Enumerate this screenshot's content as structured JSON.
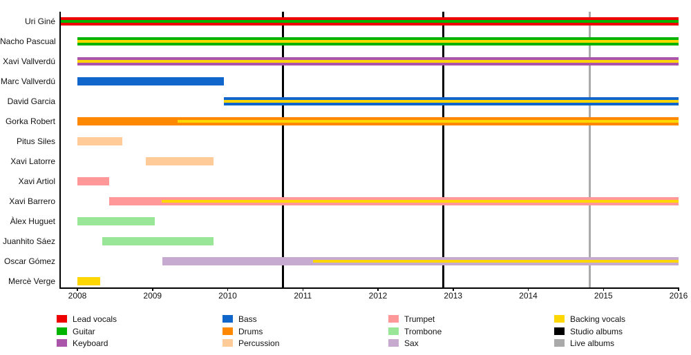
{
  "chart_data": {
    "type": "timeline",
    "title": "",
    "x_axis": {
      "min": 2007.78,
      "max": 2016,
      "ticks": [
        2008,
        2009,
        2010,
        2011,
        2012,
        2013,
        2014,
        2015,
        2016
      ]
    },
    "colors": {
      "lead_vocals": "#ee0000",
      "guitar": "#00b400",
      "keyboard": "#aa55aa",
      "bass": "#1166cc",
      "drums": "#ff8800",
      "percussion": "#ffcc99",
      "trumpet": "#ff9999",
      "trombone": "#99e699",
      "sax": "#c6aacf",
      "backing_vocals": "#ffd700",
      "studio_albums": "#000000",
      "live_albums": "#aaaaaa"
    },
    "members": [
      {
        "name": "Uri Giné",
        "roles": [
          "Lead vocals",
          "Guitar"
        ],
        "bars": [
          {
            "role": "lead_vocals",
            "from": 2007.78,
            "to": 2016
          }
        ],
        "stripe": {
          "role": "guitar",
          "from": 2007.78,
          "to": 2016
        }
      },
      {
        "name": "Nacho Pascual",
        "roles": [
          "Guitar",
          "Backing vocals"
        ],
        "bars": [
          {
            "role": "guitar",
            "from": 2008,
            "to": 2016
          }
        ],
        "stripe": {
          "role": "backing_vocals",
          "from": 2008,
          "to": 2016
        }
      },
      {
        "name": "Xavi Vallverdú",
        "roles": [
          "Keyboard",
          "Backing vocals"
        ],
        "bars": [
          {
            "role": "keyboard",
            "from": 2008,
            "to": 2016
          }
        ],
        "stripe": {
          "role": "backing_vocals",
          "from": 2008,
          "to": 2016
        }
      },
      {
        "name": "Marc Vallverdú",
        "roles": [
          "Bass"
        ],
        "bars": [
          {
            "role": "bass",
            "from": 2008,
            "to": 2009.95
          }
        ],
        "stripe": null
      },
      {
        "name": "David Garcia",
        "roles": [
          "Bass",
          "Backing vocals"
        ],
        "bars": [
          {
            "role": "bass",
            "from": 2009.95,
            "to": 2016
          }
        ],
        "stripe": {
          "role": "backing_vocals",
          "from": 2009.95,
          "to": 2016
        }
      },
      {
        "name": "Gorka Robert",
        "roles": [
          "Drums",
          "Backing vocals"
        ],
        "bars": [
          {
            "role": "drums",
            "from": 2008,
            "to": 2016
          }
        ],
        "stripe": {
          "role": "backing_vocals",
          "from": 2009.33,
          "to": 2016
        }
      },
      {
        "name": "Pitus Siles",
        "roles": [
          "Percussion"
        ],
        "bars": [
          {
            "role": "percussion",
            "from": 2008,
            "to": 2008.6
          }
        ],
        "stripe": null
      },
      {
        "name": "Xavi Latorre",
        "roles": [
          "Percussion"
        ],
        "bars": [
          {
            "role": "percussion",
            "from": 2008.91,
            "to": 2009.81
          }
        ],
        "stripe": null
      },
      {
        "name": "Xavi Artiol",
        "roles": [
          "Trumpet"
        ],
        "bars": [
          {
            "role": "trumpet",
            "from": 2008,
            "to": 2008.42
          }
        ],
        "stripe": null
      },
      {
        "name": "Xavi Barrero",
        "roles": [
          "Trumpet",
          "Backing vocals"
        ],
        "bars": [
          {
            "role": "trumpet",
            "from": 2008.42,
            "to": 2016
          }
        ],
        "stripe": {
          "role": "backing_vocals",
          "from": 2009.12,
          "to": 2016
        }
      },
      {
        "name": "Àlex Huguet",
        "roles": [
          "Trombone"
        ],
        "bars": [
          {
            "role": "trombone",
            "from": 2008,
            "to": 2009.03
          }
        ],
        "stripe": null
      },
      {
        "name": "Juanhito Sáez",
        "roles": [
          "Trombone"
        ],
        "bars": [
          {
            "role": "trombone",
            "from": 2008.33,
            "to": 2009.81
          }
        ],
        "stripe": null
      },
      {
        "name": "Oscar Gómez",
        "roles": [
          "Sax",
          "Backing vocals"
        ],
        "bars": [
          {
            "role": "sax",
            "from": 2009.13,
            "to": 2016
          }
        ],
        "stripe": {
          "role": "backing_vocals",
          "from": 2011.14,
          "to": 2016
        }
      },
      {
        "name": "Mercè Verge",
        "roles": [
          "Backing vocals"
        ],
        "bars": [
          {
            "role": "backing_vocals",
            "from": 2008,
            "to": 2008.3
          }
        ],
        "stripe": null
      }
    ],
    "events": [
      {
        "type": "studio_album",
        "year": 2010.74,
        "color": "studio_albums"
      },
      {
        "type": "studio_album",
        "year": 2012.87,
        "color": "studio_albums"
      },
      {
        "type": "live_album",
        "year": 2014.82,
        "color": "live_albums"
      }
    ],
    "legend": {
      "position": "bottom",
      "columns": [
        [
          {
            "label": "Lead vocals",
            "color": "lead_vocals"
          },
          {
            "label": "Guitar",
            "color": "guitar"
          },
          {
            "label": "Keyboard",
            "color": "keyboard"
          }
        ],
        [
          {
            "label": "Bass",
            "color": "bass"
          },
          {
            "label": "Drums",
            "color": "drums"
          },
          {
            "label": "Percussion",
            "color": "percussion"
          }
        ],
        [
          {
            "label": "Trumpet",
            "color": "trumpet"
          },
          {
            "label": "Trombone",
            "color": "trombone"
          },
          {
            "label": "Sax",
            "color": "sax"
          }
        ],
        [
          {
            "label": "Backing vocals",
            "color": "backing_vocals"
          },
          {
            "label": "Studio albums",
            "color": "studio_albums"
          },
          {
            "label": "Live albums",
            "color": "live_albums"
          }
        ]
      ]
    }
  }
}
